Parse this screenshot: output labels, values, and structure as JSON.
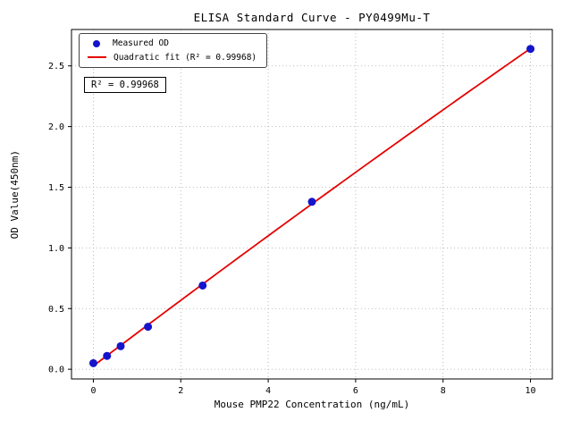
{
  "chart_data": {
    "type": "scatter",
    "title": "ELISA Standard Curve - PY0499Mu-T",
    "xlabel": "Mouse PMP22 Concentration (ng/mL)",
    "ylabel": "OD Value(450nm)",
    "xlim": [
      -0.5,
      10.5
    ],
    "ylim": [
      -0.08,
      2.8
    ],
    "xticks": [
      0,
      2,
      4,
      6,
      8,
      10
    ],
    "xtick_labels": [
      "0",
      "2",
      "4",
      "6",
      "8",
      "10"
    ],
    "yticks": [
      0.0,
      0.5,
      1.0,
      1.5,
      2.0,
      2.5
    ],
    "ytick_labels": [
      "0.0",
      "0.5",
      "1.0",
      "1.5",
      "2.0",
      "2.5"
    ],
    "grid": true,
    "legend_position": "upper left",
    "annotation": "R² = 0.99968",
    "colors": {
      "point": "#1414cc",
      "line": "#e60000",
      "grid": "#aaaaaa",
      "axis": "#000000"
    },
    "series": [
      {
        "name": "Measured OD",
        "type": "scatter",
        "color": "#1414cc",
        "points": [
          [
            0,
            0.05
          ],
          [
            0.3125,
            0.11
          ],
          [
            0.625,
            0.19
          ],
          [
            1.25,
            0.35
          ],
          [
            2.5,
            0.69
          ],
          [
            5,
            1.38
          ],
          [
            10,
            2.64
          ]
        ]
      },
      {
        "name": "Quadratic fit (R² = 0.99968)",
        "type": "line",
        "fit": "quadratic",
        "r_squared": "0.99968",
        "color": "#e60000"
      }
    ]
  }
}
